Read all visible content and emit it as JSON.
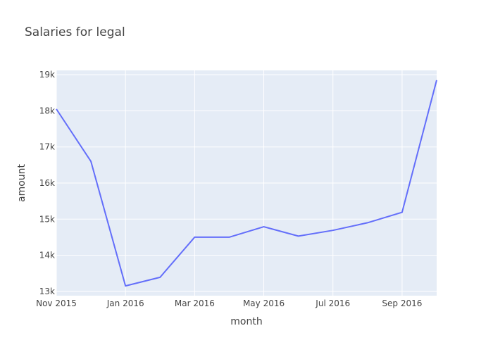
{
  "chart_data": {
    "type": "line",
    "title": "Salaries for legal",
    "xlabel": "month",
    "ylabel": "amount",
    "x": [
      "2015-11",
      "2015-12",
      "2016-01",
      "2016-02",
      "2016-03",
      "2016-04",
      "2016-05",
      "2016-06",
      "2016-07",
      "2016-08",
      "2016-09",
      "2016-10"
    ],
    "series": [
      {
        "values": [
          18050,
          16600,
          13150,
          13390,
          14500,
          14500,
          14790,
          14530,
          14690,
          14900,
          15190,
          18850
        ]
      }
    ],
    "x_ticks": [
      {
        "x": "2015-11",
        "label": "Nov 2015"
      },
      {
        "x": "2016-01",
        "label": "Jan 2016"
      },
      {
        "x": "2016-03",
        "label": "Mar 2016"
      },
      {
        "x": "2016-05",
        "label": "May 2016"
      },
      {
        "x": "2016-07",
        "label": "Jul 2016"
      },
      {
        "x": "2016-09",
        "label": "Sep 2016"
      }
    ],
    "y_ticks": [
      {
        "value": 13000,
        "label": "13k"
      },
      {
        "value": 14000,
        "label": "14k"
      },
      {
        "value": 15000,
        "label": "15k"
      },
      {
        "value": 16000,
        "label": "16k"
      },
      {
        "value": 17000,
        "label": "17k"
      },
      {
        "value": 18000,
        "label": "18k"
      },
      {
        "value": 19000,
        "label": "19k"
      }
    ],
    "xlim": [
      "2015-11",
      "2016-10"
    ],
    "ylim": [
      12880,
      19120
    ],
    "grid": true,
    "colors": {
      "line": "#636efa",
      "plot_bg": "#e5ecf6",
      "grid": "#ffffff"
    }
  }
}
